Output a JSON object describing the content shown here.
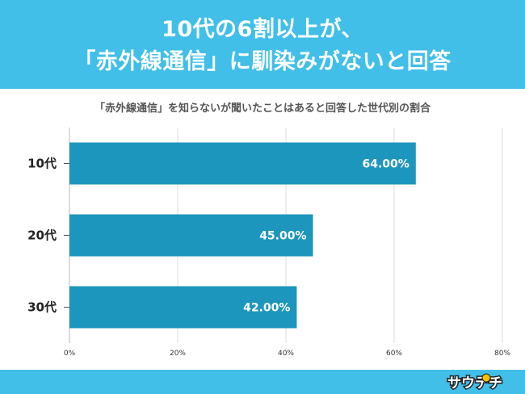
{
  "header": {
    "line1": "10代の6割以上が、",
    "line2": "「赤外線通信」に馴染みがないと回答"
  },
  "chart_data": {
    "type": "bar",
    "orientation": "horizontal",
    "title": "「赤外線通信」を知らないが聞いたことはあると回答した世代別の割合",
    "categories": [
      "10代",
      "20代",
      "30代"
    ],
    "values": [
      64.0,
      45.0,
      42.0
    ],
    "value_labels": [
      "64.00%",
      "45.00%",
      "42.00%"
    ],
    "xlim": [
      0,
      80
    ],
    "xticks": [
      0,
      20,
      40,
      60,
      80
    ],
    "xtick_labels": [
      "0%",
      "20%",
      "40%",
      "60%",
      "80%"
    ],
    "grid": true,
    "bar_color": "#1d96bd"
  },
  "footer": {
    "logo": "サウテチ",
    "color": "#41bfe8"
  }
}
